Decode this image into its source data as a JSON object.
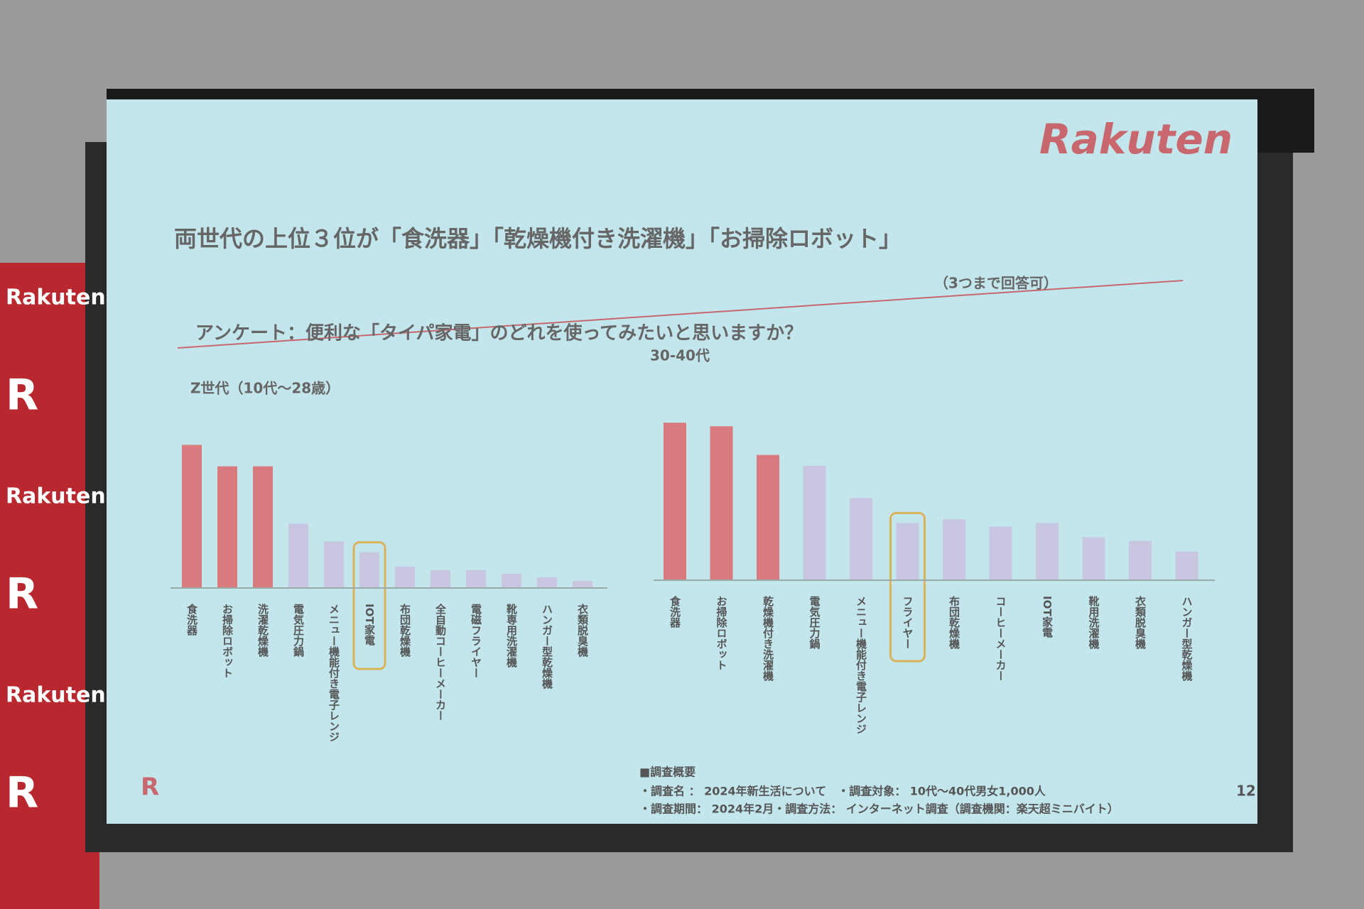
{
  "slide": {
    "logo": "Rakuten",
    "title": "両世代の上位３位が「食洗器」「乾燥機付き洗濯機」「お掃除ロボット」",
    "question": "アンケート：便利な「タイパ家電」のどれを使ってみたいと思いますか？",
    "question_note": "（3つまで回答可）",
    "footnote": [
      "■調査概要",
      "・調査名 ： 2024年新生活について　・調査対象： 10代～40代男女1,000人",
      "・調査期間： 2024年2月・調査方法： インターネット調査（調査機関：楽天超ミニバイト）"
    ],
    "page": "12",
    "corner_logo": "R",
    "banner": [
      "Rakuten",
      "R",
      "Rakuten",
      "R",
      "Rakuten",
      "R"
    ]
  },
  "chart_data": [
    {
      "type": "bar",
      "title": "Z世代（10代～28歳）",
      "categories": [
        "食洗器",
        "お掃除ロボット",
        "洗濯乾燥機",
        "電気圧力鍋",
        "メニュー機能付き電子レンジ",
        "IOT家電",
        "布団乾燥機",
        "全自動コーヒーメーカー",
        "電磁フライヤー",
        "靴専用洗濯機",
        "ハンガー型乾燥機",
        "衣類脱臭機"
      ],
      "values": [
        40,
        34,
        34,
        18,
        13,
        10,
        6,
        5,
        5,
        4,
        3,
        2
      ],
      "colors": [
        "#d97b7e",
        "#d97b7e",
        "#d97b7e",
        "#c9c6e2",
        "#c9c6e2",
        "#c9c6e2",
        "#c9c6e2",
        "#c9c6e2",
        "#c9c6e2",
        "#c9c6e2",
        "#c9c6e2",
        "#c9c6e2"
      ],
      "highlight_index": 5,
      "highlight_color": "#d9b25a",
      "ylim": [
        0,
        50
      ]
    },
    {
      "type": "bar",
      "title": "30-40代",
      "categories": [
        "食洗器",
        "お掃除ロボット",
        "乾燥機付き洗濯機",
        "電気圧力鍋",
        "メニュー機能付き電子レンジ",
        "フライヤー",
        "布団乾燥機",
        "コーヒーメーカー",
        "IOT家電",
        "靴用洗濯機",
        "衣類脱臭機",
        "ハンガー型乾燥機"
      ],
      "values": [
        44,
        43,
        35,
        32,
        23,
        16,
        17,
        15,
        16,
        12,
        11,
        8
      ],
      "colors": [
        "#d97b7e",
        "#d97b7e",
        "#d97b7e",
        "#c9c6e2",
        "#c9c6e2",
        "#c9c6e2",
        "#c9c6e2",
        "#c9c6e2",
        "#c9c6e2",
        "#c9c6e2",
        "#c9c6e2",
        "#c9c6e2"
      ],
      "highlight_index": 5,
      "highlight_color": "#d9b25a",
      "ylim": [
        0,
        50
      ]
    }
  ]
}
